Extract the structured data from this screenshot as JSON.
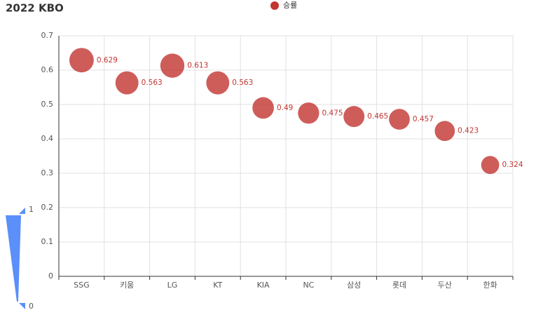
{
  "chart_data": {
    "type": "scatter",
    "title": "2022 KBO",
    "categories": [
      "SSG",
      "키움",
      "LG",
      "KT",
      "KIA",
      "NC",
      "삼성",
      "롯데",
      "두산",
      "한화"
    ],
    "series": [
      {
        "name": "승률",
        "color": "#c23531",
        "values": [
          0.629,
          0.563,
          0.613,
          0.563,
          0.49,
          0.475,
          0.465,
          0.457,
          0.423,
          0.324
        ]
      }
    ],
    "ylim": [
      0,
      0.7
    ],
    "yticks": [
      0,
      0.1,
      0.2,
      0.3,
      0.4,
      0.5,
      0.6,
      0.7
    ],
    "grid": true,
    "legend_position": "top",
    "visual_map": {
      "range": [
        0,
        1
      ],
      "color": "#5b8ff9"
    }
  }
}
